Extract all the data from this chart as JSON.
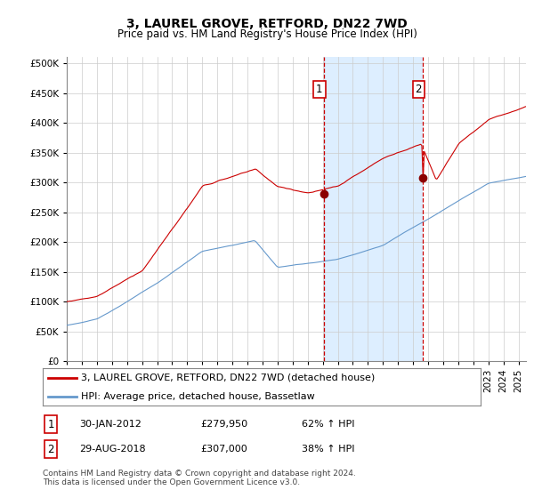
{
  "title": "3, LAUREL GROVE, RETFORD, DN22 7WD",
  "subtitle": "Price paid vs. HM Land Registry's House Price Index (HPI)",
  "ylim": [
    0,
    510000
  ],
  "yticks": [
    0,
    50000,
    100000,
    150000,
    200000,
    250000,
    300000,
    350000,
    400000,
    450000,
    500000
  ],
  "line1_color": "#cc0000",
  "line2_color": "#6699cc",
  "shade_color": "#ddeeff",
  "sale1_year": 2012.08,
  "sale1_price": 279950,
  "sale2_year": 2018.67,
  "sale2_price": 307000,
  "legend_line1": "3, LAUREL GROVE, RETFORD, DN22 7WD (detached house)",
  "legend_line2": "HPI: Average price, detached house, Bassetlaw",
  "footer": "Contains HM Land Registry data © Crown copyright and database right 2024.\nThis data is licensed under the Open Government Licence v3.0.",
  "bg_color": "#ffffff",
  "grid_color": "#cccccc",
  "vline_color": "#cc0000",
  "title_fontsize": 10,
  "subtitle_fontsize": 8.5,
  "tick_fontsize": 7.5,
  "legend_fontsize": 8,
  "annotation_fontsize": 8,
  "footer_fontsize": 6.5,
  "xlim_start": 1995.0,
  "xlim_end": 2025.5
}
